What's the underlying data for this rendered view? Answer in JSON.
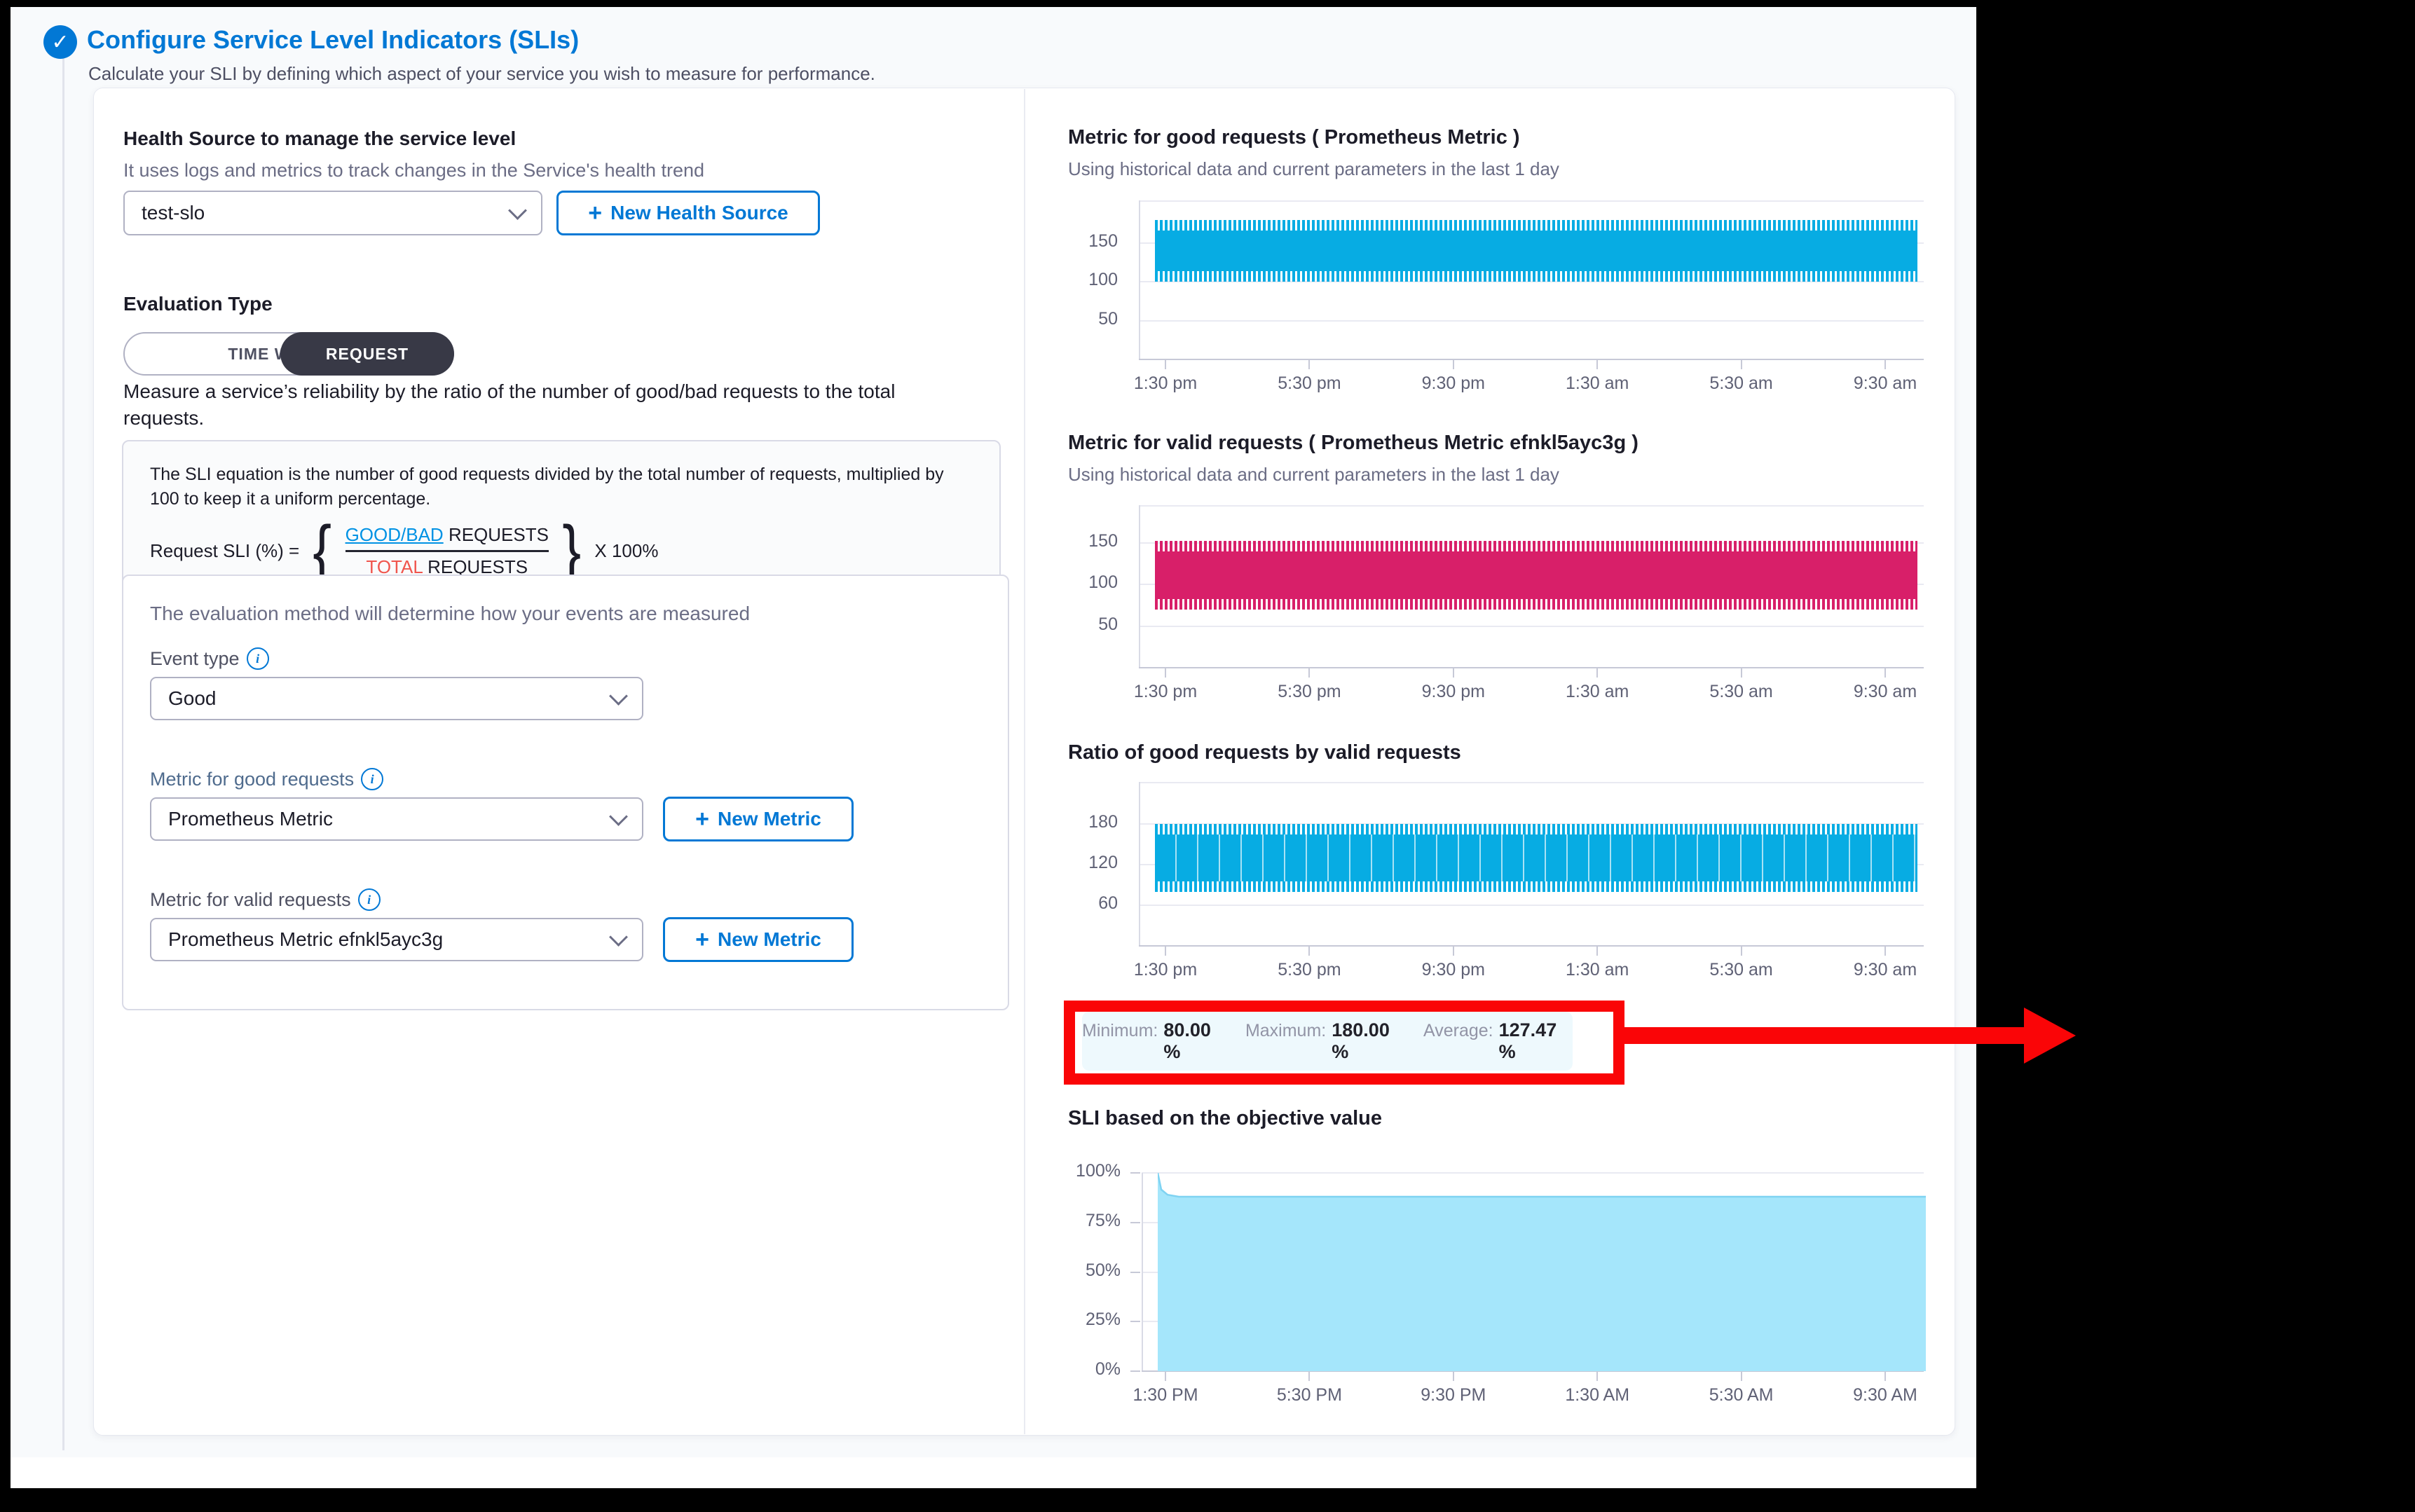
{
  "icons": {
    "check": "✓",
    "plus": "+",
    "info": "i"
  },
  "colors": {
    "accent_blue": "#0278d5",
    "chart_blue": "#07ace3",
    "chart_pink": "#d81f69",
    "chart_sky_fill": "#a5e6fb",
    "annotation_red": "#fa0507",
    "equation_link_blue": "#0092e4",
    "equation_total_red": "#f0564e",
    "toggle_dark": "#383946"
  },
  "header": {
    "title": "Configure Service Level Indicators (SLIs)",
    "subtitle": "Calculate your SLI by defining which aspect of your service you wish to measure for performance."
  },
  "form": {
    "health_source": {
      "label": "Health Source to manage the service level",
      "hint": "It uses logs and metrics to track changes in the Service's health trend",
      "selected": "test-slo",
      "new_button": "New Health Source"
    },
    "evaluation_type": {
      "label": "Evaluation Type",
      "options": [
        "TIME WINDOW",
        "REQUEST"
      ],
      "selected": "REQUEST",
      "description": "Measure a service’s reliability by the ratio of the number of good/bad requests to the total requests."
    },
    "equation": {
      "text": "The SLI equation is the number of good requests divided by the total number of requests, multiplied by 100 to keep it a uniform percentage.",
      "lhs": "Request SLI (%) =",
      "numerator_highlight": "GOOD/BAD",
      "numerator_rest": "REQUESTS",
      "denominator_highlight": "TOTAL",
      "denominator_rest": "REQUESTS",
      "multiplier": "X 100%",
      "brace_left": "{",
      "brace_right": "}"
    },
    "evaluation_method": {
      "hint": "The evaluation method will determine how your events are measured",
      "event_type_label": "Event type",
      "event_type_value": "Good",
      "good_metric_label": "Metric for good requests",
      "good_metric_value": "Prometheus Metric",
      "valid_metric_label": "Metric for valid requests",
      "valid_metric_value": "Prometheus Metric efnkl5ayc3g",
      "new_metric_button": "New Metric"
    }
  },
  "stats": {
    "minimum_label": "Minimum:",
    "minimum": "80.00 %",
    "maximum_label": "Maximum:",
    "maximum": "180.00 %",
    "average_label": "Average:",
    "average": "127.47 %"
  },
  "chart_data": [
    {
      "type": "band",
      "title": "Metric for good requests ( Prometheus Metric )",
      "subtitle": "Using historical data and current parameters in the last 1 day",
      "color": "#07ace3",
      "band": {
        "min": 100,
        "max": 180
      },
      "pattern": "dense high-frequency oscillation between min and max",
      "ylim": [
        0,
        205
      ],
      "yticks": {
        "values": [
          150,
          100,
          50
        ],
        "labels": [
          "150",
          "100",
          "50"
        ]
      },
      "xticks": [
        "1:30 pm",
        "5:30 pm",
        "9:30 pm",
        "1:30 am",
        "5:30 am",
        "9:30 am"
      ],
      "grid": true,
      "legend": false
    },
    {
      "type": "band",
      "title": "Metric for valid requests ( Prometheus Metric efnkl5ayc3g )",
      "subtitle": "Using historical data and current parameters in the last 1 day",
      "color": "#d81f69",
      "band": {
        "min": 70,
        "max": 152
      },
      "pattern": "dense high-frequency oscillation between min and max",
      "ylim": [
        0,
        195
      ],
      "yticks": {
        "values": [
          150,
          100,
          50
        ],
        "labels": [
          "150",
          "100",
          "50"
        ]
      },
      "xticks": [
        "1:30 pm",
        "5:30 pm",
        "9:30 pm",
        "1:30 am",
        "5:30 am",
        "9:30 am"
      ],
      "grid": true,
      "legend": false
    },
    {
      "type": "band",
      "title": "Ratio of good requests by valid requests",
      "subtitle": "",
      "color": "#07ace3",
      "band": {
        "min": 80,
        "max": 180
      },
      "streaks": true,
      "pattern": "dense oscillation between min and max with vertical white streaks",
      "ylim": [
        0,
        242
      ],
      "yticks": {
        "values": [
          180,
          120,
          60
        ],
        "labels": [
          "180",
          "120",
          "60"
        ]
      },
      "xticks": [
        "1:30 pm",
        "5:30 pm",
        "9:30 pm",
        "1:30 am",
        "5:30 am",
        "9:30 am"
      ],
      "grid": true,
      "legend": false,
      "summary": {
        "minimum_pct": 80.0,
        "maximum_pct": 180.0,
        "average_pct": 127.47
      }
    },
    {
      "type": "area",
      "title": "SLI based on the objective value",
      "subtitle": "",
      "color": "#a5e6fb",
      "stroke": "#7fd3f2",
      "start_value_pct": 100,
      "steady_value_pct": 88,
      "pattern": "starts at 100% and settles to a flat ~88% for the rest of the day",
      "ylim": [
        0,
        100
      ],
      "yticks": {
        "values": [
          100,
          75,
          50,
          25,
          0
        ],
        "labels": [
          "100%",
          "75%",
          "50%",
          "25%",
          "0%"
        ]
      },
      "xticks": [
        "1:30 PM",
        "5:30 PM",
        "9:30 PM",
        "1:30 AM",
        "5:30 AM",
        "9:30 AM"
      ],
      "grid": true,
      "legend": false
    }
  ]
}
